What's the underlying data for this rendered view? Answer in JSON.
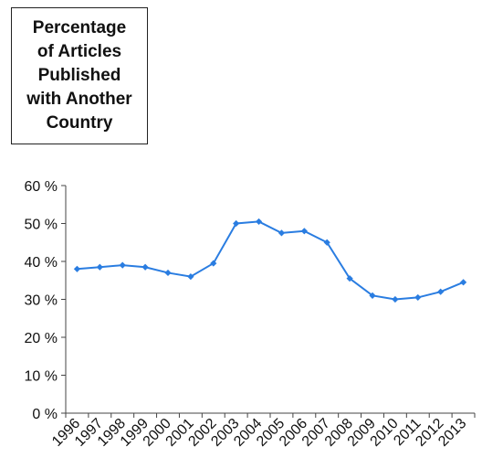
{
  "chart_data": {
    "type": "line",
    "title_lines": [
      "Percentage",
      "of Articles",
      "Published",
      "with Another",
      "Country"
    ],
    "x": [
      "1996",
      "1997",
      "1998",
      "1999",
      "2000",
      "2001",
      "2002",
      "2003",
      "2004",
      "2005",
      "2006",
      "2007",
      "2008",
      "2009",
      "2010",
      "2011",
      "2012",
      "2013"
    ],
    "series": [
      {
        "values": [
          38,
          38.5,
          39,
          38.5,
          37,
          36,
          39.5,
          50,
          50.5,
          47.5,
          48,
          45,
          35.5,
          31,
          30,
          30.5,
          32,
          34.5
        ],
        "color": "#2a7de1"
      }
    ],
    "ylim": [
      0,
      60
    ],
    "yticks": [
      "0 %",
      "10 %",
      "20 %",
      "30 %",
      "40 %",
      "50 %",
      "60 %"
    ],
    "ytick_values": [
      0,
      10,
      20,
      30,
      40,
      50,
      60
    ],
    "grid": false,
    "legend": "none"
  }
}
